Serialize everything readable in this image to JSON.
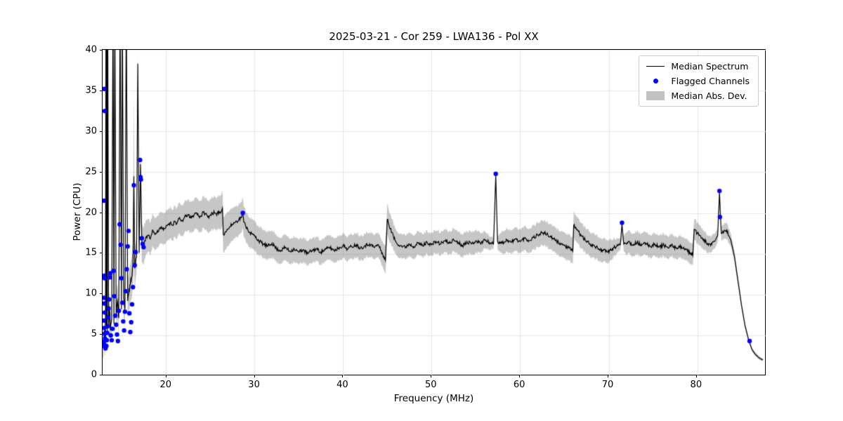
{
  "chart_data": {
    "type": "line",
    "title": "2025-03-21 - Cor 259 - LWA136 - Pol XX",
    "xlabel": "Frequency (MHz)",
    "ylabel": "Power (CPU)",
    "xlim": [
      12.87,
      87.8
    ],
    "ylim": [
      0,
      40
    ],
    "grid": true,
    "legend_position": "upper right",
    "xticks": [
      20,
      30,
      40,
      50,
      60,
      70,
      80
    ],
    "xtick_labels": [
      "20",
      "30",
      "40",
      "50",
      "60",
      "70",
      "80"
    ],
    "yticks": [
      0,
      5,
      10,
      15,
      20,
      25,
      30,
      35,
      40
    ],
    "ytick_labels": [
      "0",
      "5",
      "10",
      "15",
      "20",
      "25",
      "30",
      "35",
      "40"
    ],
    "legend": [
      {
        "label": "Median Spectrum",
        "type": "line",
        "color": "#000000"
      },
      {
        "label": "Flagged Channels",
        "type": "marker",
        "color": "#0000ff"
      },
      {
        "label": "Median Abs. Dev.",
        "type": "patch",
        "color": "#c2c2c2"
      }
    ],
    "colors": {
      "line": "#000000",
      "flagged": "#0000ff",
      "band": "rgba(128,128,128,0.45)",
      "grid": "#e4e4e4",
      "axes": "#000000"
    },
    "noise": {
      "seed": 11,
      "step": 0.07,
      "low": 0.4,
      "mid": 0.22,
      "tail": 0.03,
      "low_end": 17.5,
      "tail_start": 83.6
    },
    "series": {
      "median": [
        [
          12.9,
          4.0
        ],
        [
          13.0,
          3.7
        ],
        [
          13.05,
          5.0
        ],
        [
          13.1,
          5.6
        ],
        [
          13.15,
          4.3
        ],
        [
          13.2,
          4.1
        ],
        [
          13.25,
          46
        ],
        [
          13.3,
          5.8
        ],
        [
          13.35,
          46
        ],
        [
          13.4,
          5.5
        ],
        [
          13.45,
          46
        ],
        [
          13.55,
          6.0
        ],
        [
          13.65,
          8.5
        ],
        [
          13.75,
          5.6
        ],
        [
          13.9,
          7.0
        ],
        [
          14.05,
          46
        ],
        [
          14.15,
          6.4
        ],
        [
          14.25,
          46
        ],
        [
          14.4,
          7.6
        ],
        [
          14.55,
          9.2
        ],
        [
          14.7,
          7.1
        ],
        [
          14.85,
          46
        ],
        [
          15.0,
          8.2
        ],
        [
          15.1,
          46
        ],
        [
          15.25,
          9.6
        ],
        [
          15.4,
          8.2
        ],
        [
          15.55,
          46
        ],
        [
          15.7,
          9.2
        ],
        [
          15.85,
          10.6
        ],
        [
          16.0,
          11.2
        ],
        [
          16.15,
          12.1
        ],
        [
          16.3,
          13.6
        ],
        [
          16.4,
          24.5
        ],
        [
          16.5,
          13.2
        ],
        [
          16.7,
          14.6
        ],
        [
          16.85,
          38.3
        ],
        [
          17.0,
          15.1
        ],
        [
          17.15,
          26.0
        ],
        [
          17.3,
          16.3
        ],
        [
          17.5,
          16.0
        ],
        [
          17.75,
          17.0
        ],
        [
          18.0,
          17.3
        ],
        [
          18.25,
          16.8
        ],
        [
          18.5,
          17.9
        ],
        [
          18.75,
          17.4
        ],
        [
          19.0,
          17.6
        ],
        [
          19.25,
          18.0
        ],
        [
          19.5,
          18.3
        ],
        [
          19.75,
          17.9
        ],
        [
          20.0,
          18.2
        ],
        [
          20.25,
          18.6
        ],
        [
          20.5,
          18.8
        ],
        [
          20.75,
          18.5
        ],
        [
          21.0,
          19.0
        ],
        [
          21.25,
          18.7
        ],
        [
          21.5,
          19.3
        ],
        [
          21.75,
          19.0
        ],
        [
          22.0,
          19.2
        ],
        [
          22.25,
          19.6
        ],
        [
          22.5,
          19.8
        ],
        [
          22.75,
          19.4
        ],
        [
          23.0,
          19.5
        ],
        [
          23.25,
          19.9
        ],
        [
          23.5,
          20.0
        ],
        [
          23.75,
          19.6
        ],
        [
          24.0,
          19.6
        ],
        [
          24.25,
          20.1
        ],
        [
          24.5,
          19.9
        ],
        [
          24.75,
          19.5
        ],
        [
          25.0,
          19.7
        ],
        [
          25.25,
          20.0
        ],
        [
          25.5,
          20.0
        ],
        [
          25.75,
          19.7
        ],
        [
          26.0,
          20.2
        ],
        [
          26.2,
          20.0
        ],
        [
          26.4,
          20.6
        ],
        [
          26.5,
          17.4
        ],
        [
          26.75,
          17.7
        ],
        [
          27.0,
          18.0
        ],
        [
          27.25,
          18.3
        ],
        [
          27.5,
          18.6
        ],
        [
          27.75,
          18.8
        ],
        [
          28.0,
          19.0
        ],
        [
          28.25,
          19.2
        ],
        [
          28.5,
          19.4
        ],
        [
          28.7,
          20.0
        ],
        [
          28.8,
          18.9
        ],
        [
          29.0,
          18.5
        ],
        [
          29.25,
          18.0
        ],
        [
          29.5,
          17.6
        ],
        [
          29.75,
          17.4
        ],
        [
          30.0,
          17.2
        ],
        [
          30.5,
          16.6
        ],
        [
          31.0,
          16.2
        ],
        [
          31.5,
          15.9
        ],
        [
          32.0,
          16.3
        ],
        [
          32.5,
          15.6
        ],
        [
          33.0,
          15.4
        ],
        [
          33.5,
          15.8
        ],
        [
          34.0,
          15.3
        ],
        [
          34.5,
          15.6
        ],
        [
          35.0,
          15.2
        ],
        [
          35.5,
          15.5
        ],
        [
          36.0,
          15.0
        ],
        [
          36.5,
          15.4
        ],
        [
          37.0,
          15.6
        ],
        [
          37.5,
          15.2
        ],
        [
          38.0,
          15.5
        ],
        [
          38.5,
          15.8
        ],
        [
          39.0,
          15.4
        ],
        [
          39.5,
          15.7
        ],
        [
          40.0,
          16.0
        ],
        [
          40.5,
          15.6
        ],
        [
          41.0,
          15.9
        ],
        [
          41.5,
          16.1
        ],
        [
          42.0,
          15.7
        ],
        [
          42.5,
          16.0
        ],
        [
          43.0,
          16.2
        ],
        [
          43.5,
          15.8
        ],
        [
          44.0,
          16.1
        ],
        [
          44.5,
          14.9
        ],
        [
          44.8,
          14.2
        ],
        [
          45.0,
          19.2
        ],
        [
          45.35,
          18.1
        ],
        [
          45.7,
          17.1
        ],
        [
          46.0,
          16.4
        ],
        [
          46.5,
          16.0
        ],
        [
          47.0,
          15.8
        ],
        [
          47.5,
          16.2
        ],
        [
          48.0,
          15.9
        ],
        [
          48.5,
          16.3
        ],
        [
          49.0,
          16.0
        ],
        [
          49.5,
          16.4
        ],
        [
          50.0,
          16.1
        ],
        [
          50.5,
          16.5
        ],
        [
          51.0,
          16.2
        ],
        [
          51.5,
          16.6
        ],
        [
          52.0,
          16.3
        ],
        [
          52.5,
          16.7
        ],
        [
          53.0,
          16.4
        ],
        [
          53.5,
          16.0
        ],
        [
          54.0,
          16.5
        ],
        [
          54.5,
          16.2
        ],
        [
          55.0,
          16.6
        ],
        [
          55.5,
          16.3
        ],
        [
          56.0,
          16.7
        ],
        [
          56.5,
          16.4
        ],
        [
          57.0,
          16.2
        ],
        [
          57.25,
          24.6
        ],
        [
          57.45,
          16.5
        ],
        [
          58.0,
          16.3
        ],
        [
          58.5,
          16.7
        ],
        [
          59.0,
          16.4
        ],
        [
          59.5,
          16.8
        ],
        [
          60.0,
          16.5
        ],
        [
          60.5,
          16.9
        ],
        [
          61.0,
          16.6
        ],
        [
          61.5,
          17.0
        ],
        [
          62.0,
          17.3
        ],
        [
          62.5,
          17.6
        ],
        [
          63.0,
          17.4
        ],
        [
          63.5,
          17.0
        ],
        [
          64.0,
          16.6
        ],
        [
          64.5,
          16.3
        ],
        [
          65.0,
          16.0
        ],
        [
          65.5,
          15.7
        ],
        [
          65.95,
          15.3
        ],
        [
          66.05,
          18.5
        ],
        [
          66.4,
          18.0
        ],
        [
          66.9,
          17.2
        ],
        [
          67.4,
          16.6
        ],
        [
          67.9,
          16.2
        ],
        [
          68.4,
          15.9
        ],
        [
          68.9,
          15.6
        ],
        [
          69.4,
          15.4
        ],
        [
          69.9,
          15.2
        ],
        [
          70.4,
          15.6
        ],
        [
          70.9,
          15.9
        ],
        [
          71.3,
          16.1
        ],
        [
          71.5,
          18.6
        ],
        [
          71.7,
          16.2
        ],
        [
          72.2,
          16.5
        ],
        [
          72.7,
          16.1
        ],
        [
          73.2,
          16.4
        ],
        [
          73.7,
          16.0
        ],
        [
          74.2,
          16.3
        ],
        [
          74.7,
          15.9
        ],
        [
          75.2,
          16.2
        ],
        [
          75.7,
          15.8
        ],
        [
          76.2,
          16.1
        ],
        [
          76.7,
          15.7
        ],
        [
          77.2,
          16.0
        ],
        [
          77.7,
          15.6
        ],
        [
          78.2,
          15.9
        ],
        [
          78.7,
          15.5
        ],
        [
          79.2,
          15.1
        ],
        [
          79.5,
          14.8
        ],
        [
          79.65,
          18.0
        ],
        [
          80.0,
          17.5
        ],
        [
          80.5,
          16.9
        ],
        [
          81.0,
          16.4
        ],
        [
          81.5,
          16.0
        ],
        [
          82.0,
          16.6
        ],
        [
          82.3,
          17.2
        ],
        [
          82.5,
          22.6
        ],
        [
          82.7,
          17.5
        ],
        [
          83.0,
          17.7
        ],
        [
          83.3,
          17.9
        ],
        [
          83.8,
          16.6
        ],
        [
          84.2,
          14.6
        ],
        [
          84.6,
          11.6
        ],
        [
          85.0,
          8.6
        ],
        [
          85.4,
          6.1
        ],
        [
          85.8,
          4.4
        ],
        [
          86.2,
          3.2
        ],
        [
          86.6,
          2.6
        ],
        [
          87.0,
          2.2
        ],
        [
          87.4,
          2.0
        ]
      ],
      "mad_halfwidth": [
        [
          12.9,
          1.6
        ],
        [
          14.0,
          2.0
        ],
        [
          15.0,
          2.2
        ],
        [
          16.0,
          2.4
        ],
        [
          16.3,
          2.6
        ],
        [
          16.4,
          10.8
        ],
        [
          16.5,
          2.6
        ],
        [
          16.85,
          1.5
        ],
        [
          17.2,
          2.4
        ],
        [
          18.0,
          2.0
        ],
        [
          20.0,
          1.9
        ],
        [
          23.0,
          1.9
        ],
        [
          26.0,
          2.0
        ],
        [
          26.5,
          2.2
        ],
        [
          28.0,
          1.9
        ],
        [
          30.0,
          1.8
        ],
        [
          33.0,
          1.6
        ],
        [
          36.0,
          1.5
        ],
        [
          40.0,
          1.5
        ],
        [
          44.5,
          1.5
        ],
        [
          45.0,
          1.9
        ],
        [
          46.0,
          1.5
        ],
        [
          50.0,
          1.4
        ],
        [
          55.0,
          1.4
        ],
        [
          57.25,
          0.6
        ],
        [
          58.0,
          1.4
        ],
        [
          62.0,
          1.5
        ],
        [
          66.0,
          1.6
        ],
        [
          70.0,
          1.4
        ],
        [
          71.5,
          0.6
        ],
        [
          72.0,
          1.4
        ],
        [
          76.0,
          1.4
        ],
        [
          79.5,
          1.3
        ],
        [
          80.0,
          1.3
        ],
        [
          82.5,
          0.8
        ],
        [
          83.3,
          1.0
        ],
        [
          84.0,
          0.7
        ],
        [
          85.0,
          0.4
        ],
        [
          86.0,
          0.25
        ],
        [
          87.4,
          0.2
        ]
      ],
      "flagged": [
        [
          13.0,
          21.5
        ],
        [
          13.0,
          9.6
        ],
        [
          13.0,
          6.8
        ],
        [
          13.0,
          4.2
        ],
        [
          13.05,
          35.2
        ],
        [
          13.05,
          12.3
        ],
        [
          13.05,
          8.9
        ],
        [
          13.05,
          5.9
        ],
        [
          13.05,
          3.9
        ],
        [
          13.1,
          32.5
        ],
        [
          13.1,
          12.0
        ],
        [
          13.1,
          7.8
        ],
        [
          13.1,
          5.2
        ],
        [
          13.1,
          3.6
        ],
        [
          13.15,
          4.6
        ],
        [
          13.2,
          3.4
        ],
        [
          13.3,
          3.7
        ],
        [
          13.35,
          4.4
        ],
        [
          13.4,
          5.3
        ],
        [
          13.45,
          6.1
        ],
        [
          13.5,
          7.2
        ],
        [
          13.55,
          8.3
        ],
        [
          13.6,
          9.4
        ],
        [
          13.7,
          12.1
        ],
        [
          13.75,
          12.6
        ],
        [
          13.8,
          5.0
        ],
        [
          13.9,
          4.4
        ],
        [
          14.0,
          5.8
        ],
        [
          14.1,
          12.9
        ],
        [
          14.2,
          9.8
        ],
        [
          14.3,
          7.4
        ],
        [
          14.4,
          6.3
        ],
        [
          14.5,
          5.1
        ],
        [
          14.6,
          4.3
        ],
        [
          14.7,
          8.0
        ],
        [
          14.8,
          18.6
        ],
        [
          14.9,
          16.1
        ],
        [
          15.0,
          12.0
        ],
        [
          15.1,
          9.0
        ],
        [
          15.2,
          6.7
        ],
        [
          15.3,
          5.6
        ],
        [
          15.4,
          7.9
        ],
        [
          15.5,
          10.4
        ],
        [
          15.6,
          13.1
        ],
        [
          15.7,
          15.9
        ],
        [
          15.8,
          17.8
        ],
        [
          15.9,
          7.7
        ],
        [
          16.0,
          5.4
        ],
        [
          16.1,
          6.6
        ],
        [
          16.2,
          8.8
        ],
        [
          16.3,
          10.9
        ],
        [
          16.4,
          23.4
        ],
        [
          16.5,
          13.6
        ],
        [
          16.6,
          15.2
        ],
        [
          17.1,
          26.5
        ],
        [
          17.15,
          24.4
        ],
        [
          17.2,
          24.1
        ],
        [
          17.3,
          16.9
        ],
        [
          17.4,
          16.2
        ],
        [
          17.5,
          15.8
        ],
        [
          28.7,
          20.0
        ],
        [
          57.25,
          24.8
        ],
        [
          71.5,
          18.8
        ],
        [
          82.5,
          22.7
        ],
        [
          82.55,
          19.5
        ],
        [
          85.9,
          4.3
        ]
      ]
    }
  }
}
